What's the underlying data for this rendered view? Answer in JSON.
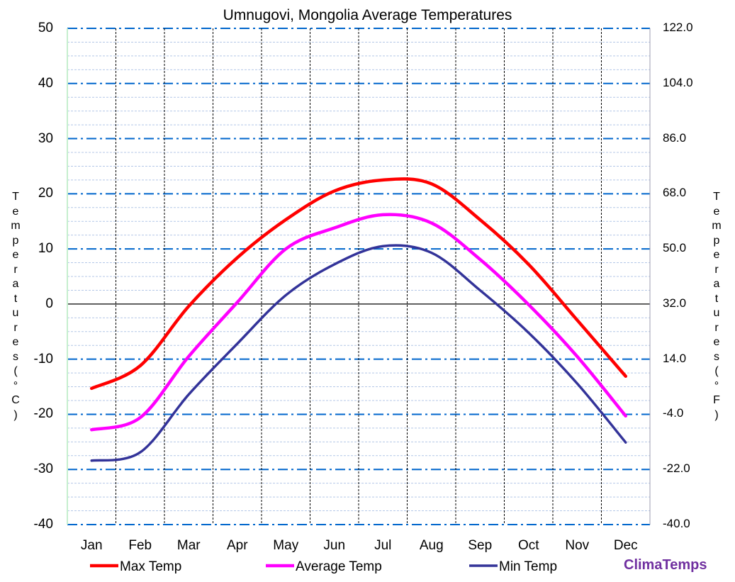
{
  "chart_data": {
    "type": "line",
    "title": "Umnugovi, Mongolia Average Temperatures",
    "ylabel": "Temperatures (°C)",
    "ylabel_right": "Temperatures (°F)",
    "categories": [
      "Jan",
      "Feb",
      "Mar",
      "Apr",
      "May",
      "Jun",
      "Jul",
      "Aug",
      "Sep",
      "Oct",
      "Nov",
      "Dec"
    ],
    "ylim": [
      -40,
      50
    ],
    "yticks": [
      "50",
      "40",
      "30",
      "20",
      "10",
      "0",
      "-10",
      "-20",
      "-30",
      "-40"
    ],
    "yticks_right": [
      "122.0",
      "104.0",
      "86.0",
      "68.0",
      "50.0",
      "32.0",
      "14.0",
      "-4.0",
      "-22.0",
      "-40.0"
    ],
    "grid": true,
    "legend_position": "bottom",
    "series": [
      {
        "name": "Max Temp",
        "color": "#ff0000",
        "values": [
          -15.3,
          -11.2,
          -0.4,
          8.4,
          15.3,
          20.5,
          22.5,
          21.8,
          15.3,
          7.2,
          -2.9,
          -13.1
        ]
      },
      {
        "name": "Average Temp",
        "color": "#ff00ff",
        "values": [
          -22.8,
          -20.6,
          -9.5,
          0.3,
          10.0,
          13.8,
          16.2,
          14.7,
          8.1,
          -0.1,
          -9.5,
          -20.3
        ]
      },
      {
        "name": "Min Temp",
        "color": "#333399",
        "values": [
          -28.4,
          -26.9,
          -16.4,
          -7.2,
          1.6,
          7.2,
          10.5,
          9.3,
          2.5,
          -5.2,
          -14.4,
          -25.1
        ]
      }
    ]
  },
  "brand": "ClimaTemps"
}
